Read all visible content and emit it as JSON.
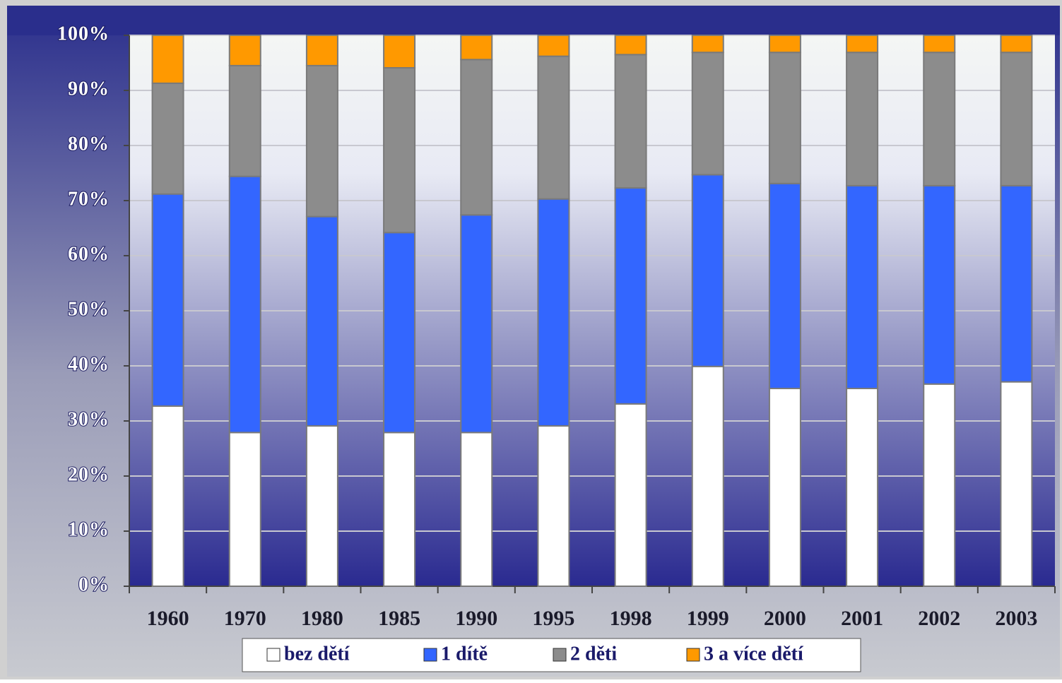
{
  "chart_data": {
    "type": "stacked_bar",
    "categories": [
      "1960",
      "1970",
      "1980",
      "1985",
      "1990",
      "1995",
      "1998",
      "1999",
      "2000",
      "2001",
      "2002",
      "2003"
    ],
    "series": [
      {
        "name": "bez dětí",
        "color": "#ffffff",
        "values": [
          32.7,
          27.9,
          29.1,
          27.9,
          27.9,
          29.1,
          33.1,
          39.9,
          35.9,
          35.9,
          36.7,
          37.1
        ]
      },
      {
        "name": "1 dítě",
        "color": "#3366ff",
        "values": [
          38.5,
          46.5,
          38.0,
          36.3,
          39.5,
          41.2,
          39.2,
          34.8,
          37.2,
          36.8,
          36.0,
          35.6
        ]
      },
      {
        "name": "2 děti",
        "color": "#8c8c8c",
        "values": [
          20.1,
          20.1,
          27.4,
          29.9,
          28.2,
          25.9,
          24.2,
          22.2,
          23.8,
          24.2,
          24.2,
          24.2
        ]
      },
      {
        "name": "3 a více dětí",
        "color": "#ff9900",
        "values": [
          8.7,
          5.5,
          5.5,
          5.9,
          4.4,
          3.8,
          3.5,
          3.1,
          3.1,
          3.1,
          3.1,
          3.1
        ]
      }
    ],
    "ylim": [
      0,
      100
    ],
    "yticks": [
      {
        "value": 0,
        "label": "0%"
      },
      {
        "value": 10,
        "label": "10%"
      },
      {
        "value": 20,
        "label": "20%"
      },
      {
        "value": 30,
        "label": "30%"
      },
      {
        "value": 40,
        "label": "40%"
      },
      {
        "value": 50,
        "label": "50%"
      },
      {
        "value": 60,
        "label": "60%"
      },
      {
        "value": 70,
        "label": "70%"
      },
      {
        "value": 80,
        "label": "80%"
      },
      {
        "value": 90,
        "label": "90%"
      },
      {
        "value": 100,
        "label": "100%"
      }
    ],
    "grid": true,
    "legend": "bottom"
  }
}
